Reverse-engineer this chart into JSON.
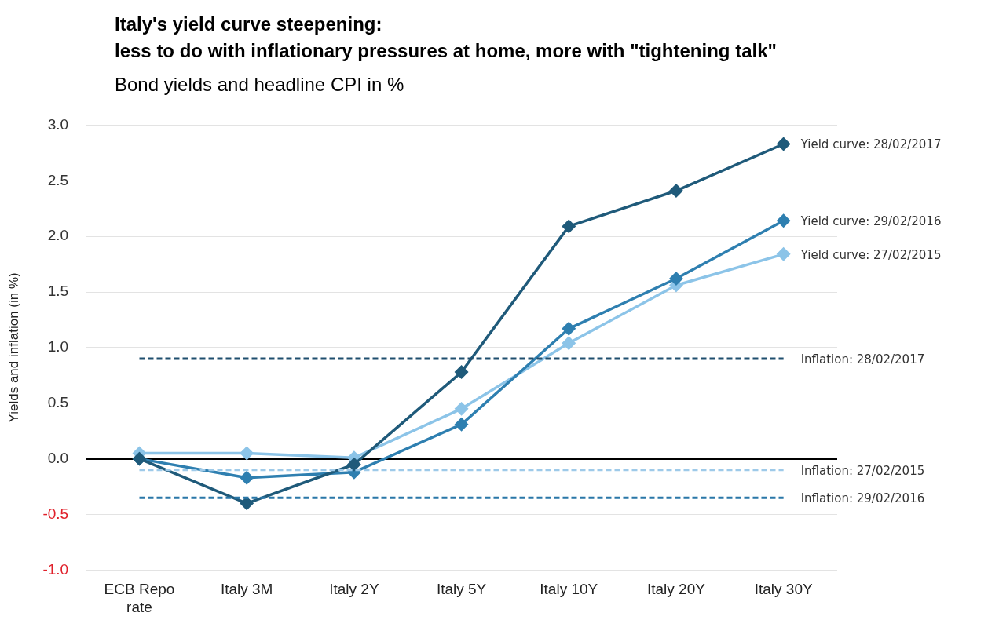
{
  "chart_data": {
    "type": "line",
    "title": "Italy's yield curve steepening:\nless to do with inflationary pressures at home, more with \"tightening talk\"",
    "subtitle": "Bond yields and headline CPI in %",
    "ylabel": "Yields and inflation (in %)",
    "categories": [
      "ECB Repo rate",
      "Italy 3M",
      "Italy 2Y",
      "Italy 5Y",
      "Italy 10Y",
      "Italy 20Y",
      "Italy 30Y"
    ],
    "series": [
      {
        "name": "Inflation: 28/02/2017",
        "color": "#1f4e6e",
        "values": [
          0.9,
          0.9,
          0.9,
          0.9,
          0.9,
          0.9,
          0.9
        ],
        "marker": "none",
        "line_style": "dashed"
      },
      {
        "name": "Inflation: 27/02/2015",
        "color": "#9ecae9",
        "values": [
          -0.1,
          -0.1,
          -0.1,
          -0.1,
          -0.1,
          -0.1,
          -0.1
        ],
        "marker": "none",
        "line_style": "dashed"
      },
      {
        "name": "Inflation: 29/02/2016",
        "color": "#2a77a8",
        "values": [
          -0.35,
          -0.35,
          -0.35,
          -0.35,
          -0.35,
          -0.35,
          -0.35
        ],
        "marker": "none",
        "line_style": "dashed"
      },
      {
        "name": "Yield curve: 28/02/2017",
        "color": "#1f5a7a",
        "values": [
          0.0,
          -0.4,
          -0.05,
          0.78,
          2.09,
          2.41,
          2.83
        ]
      },
      {
        "name": "Yield curve: 29/02/2016",
        "color": "#2e7fb0",
        "values": [
          0.0,
          -0.17,
          -0.12,
          0.31,
          1.17,
          1.62,
          2.14
        ]
      },
      {
        "name": "Yield curve: 27/02/2015",
        "color": "#8cc4e8",
        "values": [
          0.05,
          0.05,
          0.01,
          0.45,
          1.04,
          1.56,
          1.84
        ]
      }
    ],
    "ylim": [
      -1.0,
      3.0
    ],
    "yticks": [
      {
        "value": -1,
        "label": "-1.0"
      },
      {
        "value": -0.5,
        "label": "-0.5"
      },
      {
        "value": 0,
        "label": "0.0"
      },
      {
        "value": 0.5,
        "label": "0.5"
      },
      {
        "value": 1,
        "label": "1.0"
      },
      {
        "value": 1.5,
        "label": "1.5"
      },
      {
        "value": 2,
        "label": "2.0"
      },
      {
        "value": 2.5,
        "label": "2.5"
      },
      {
        "value": 3,
        "label": "3.0"
      }
    ],
    "grid": "y",
    "legend": false,
    "marker": "diamond",
    "line_style": "solid"
  }
}
